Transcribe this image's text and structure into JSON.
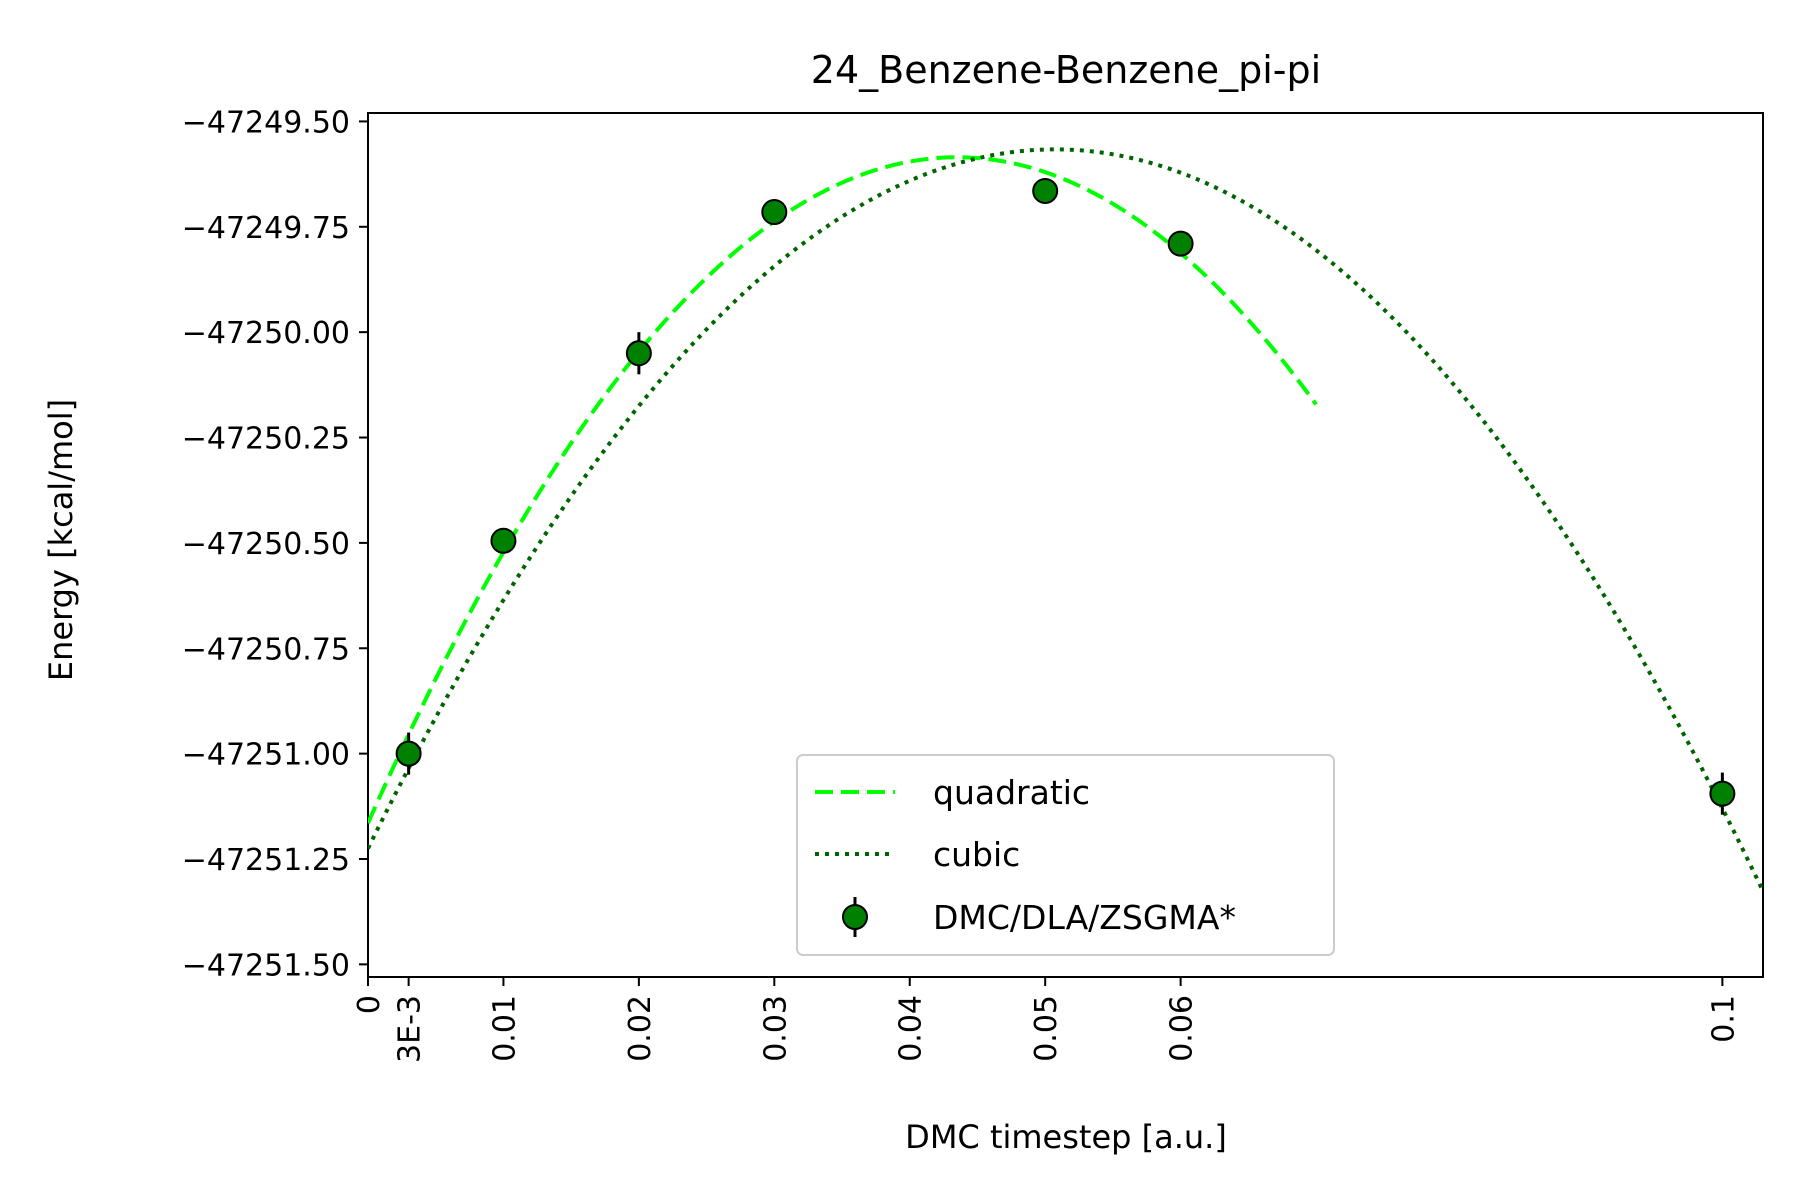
{
  "chart_data": {
    "type": "line",
    "title": "24_Benzene-Benzene_pi-pi",
    "xlabel": "DMC timestep [a.u.]",
    "ylabel": "Energy [kcal/mol]",
    "xlim": [
      0,
      0.103
    ],
    "ylim": [
      -47251.53,
      -47249.48
    ],
    "x_ticks": [
      {
        "value": 0,
        "label": "0"
      },
      {
        "value": 0.003,
        "label": "3E-3"
      },
      {
        "value": 0.01,
        "label": "0.01"
      },
      {
        "value": 0.02,
        "label": "0.02"
      },
      {
        "value": 0.03,
        "label": "0.03"
      },
      {
        "value": 0.04,
        "label": "0.04"
      },
      {
        "value": 0.05,
        "label": "0.05"
      },
      {
        "value": 0.06,
        "label": "0.06"
      },
      {
        "value": 0.1,
        "label": "0.1"
      }
    ],
    "y_ticks": [
      {
        "value": -47249.5,
        "label": "−47249.50"
      },
      {
        "value": -47249.75,
        "label": "−47249.75"
      },
      {
        "value": -47250.0,
        "label": "−47250.00"
      },
      {
        "value": -47250.25,
        "label": "−47250.25"
      },
      {
        "value": -47250.5,
        "label": "−47250.50"
      },
      {
        "value": -47250.75,
        "label": "−47250.75"
      },
      {
        "value": -47251.0,
        "label": "−47251.00"
      },
      {
        "value": -47251.25,
        "label": "−47251.25"
      },
      {
        "value": -47251.5,
        "label": "−47251.50"
      }
    ],
    "grid": false,
    "legend_position": "bottom-center",
    "series": [
      {
        "name": "quadratic",
        "kind": "fit-line",
        "style": "dashed",
        "color": "#00ff00",
        "fit": {
          "vertex_x": 0.0435,
          "vertex_y": -47249.585,
          "curvature": -835.0
        },
        "x_range": [
          0,
          0.07
        ]
      },
      {
        "name": "cubic",
        "kind": "fit-line",
        "style": "dotted",
        "color": "#006400",
        "fit": {
          "x_points": [
            0,
            0.0425,
            0.1
          ],
          "y_points": [
            -47251.225,
            -47249.61,
            -47251.13
          ]
        },
        "x_range": [
          0,
          0.103
        ]
      },
      {
        "name": "DMC/DLA/ZSGMA*",
        "kind": "errorbar",
        "color": "#008000",
        "points": [
          {
            "x": 0.003,
            "y": -47251.0,
            "err": 0.05
          },
          {
            "x": 0.01,
            "y": -47250.495,
            "err": 0.03
          },
          {
            "x": 0.02,
            "y": -47250.05,
            "err": 0.05
          },
          {
            "x": 0.03,
            "y": -47249.715,
            "err": 0.025
          },
          {
            "x": 0.05,
            "y": -47249.665,
            "err": 0.03
          },
          {
            "x": 0.06,
            "y": -47249.79,
            "err": 0.03
          },
          {
            "x": 0.1,
            "y": -47251.095,
            "err": 0.05
          }
        ]
      }
    ]
  }
}
